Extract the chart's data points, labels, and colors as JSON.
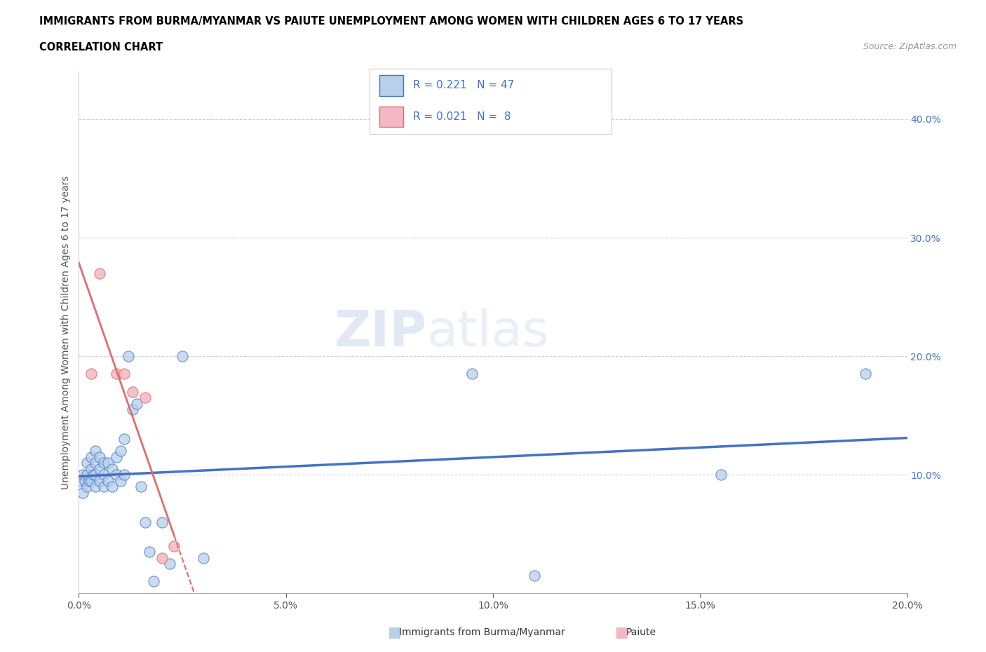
{
  "title_line1": "IMMIGRANTS FROM BURMA/MYANMAR VS PAIUTE UNEMPLOYMENT AMONG WOMEN WITH CHILDREN AGES 6 TO 17 YEARS",
  "title_line2": "CORRELATION CHART",
  "source_text": "Source: ZipAtlas.com",
  "ylabel": "Unemployment Among Women with Children Ages 6 to 17 years",
  "xlim": [
    0.0,
    0.2
  ],
  "ylim": [
    0.0,
    0.44
  ],
  "xticks": [
    0.0,
    0.05,
    0.1,
    0.15,
    0.2
  ],
  "yticks": [
    0.0,
    0.1,
    0.2,
    0.3,
    0.4
  ],
  "blue_scatter_x": [
    0.0005,
    0.001,
    0.001,
    0.0015,
    0.002,
    0.002,
    0.002,
    0.0025,
    0.003,
    0.003,
    0.003,
    0.0035,
    0.004,
    0.004,
    0.004,
    0.004,
    0.005,
    0.005,
    0.005,
    0.006,
    0.006,
    0.006,
    0.007,
    0.007,
    0.008,
    0.008,
    0.009,
    0.009,
    0.01,
    0.01,
    0.011,
    0.011,
    0.012,
    0.013,
    0.014,
    0.015,
    0.016,
    0.017,
    0.018,
    0.02,
    0.022,
    0.025,
    0.03,
    0.095,
    0.11,
    0.155,
    0.19
  ],
  "blue_scatter_y": [
    0.095,
    0.085,
    0.1,
    0.095,
    0.09,
    0.1,
    0.11,
    0.095,
    0.095,
    0.105,
    0.115,
    0.1,
    0.09,
    0.1,
    0.11,
    0.12,
    0.095,
    0.105,
    0.115,
    0.09,
    0.1,
    0.11,
    0.095,
    0.11,
    0.09,
    0.105,
    0.1,
    0.115,
    0.095,
    0.12,
    0.1,
    0.13,
    0.2,
    0.155,
    0.16,
    0.09,
    0.06,
    0.035,
    0.01,
    0.06,
    0.025,
    0.2,
    0.03,
    0.185,
    0.015,
    0.1,
    0.185
  ],
  "pink_scatter_x": [
    0.003,
    0.005,
    0.009,
    0.011,
    0.013,
    0.016,
    0.02,
    0.023
  ],
  "pink_scatter_y": [
    0.185,
    0.27,
    0.185,
    0.185,
    0.17,
    0.165,
    0.03,
    0.04
  ],
  "blue_R": 0.221,
  "blue_N": 47,
  "pink_R": 0.021,
  "pink_N": 8,
  "blue_line_color": "#4472c4",
  "pink_line_color": "#e36c6c",
  "blue_scatter_color": "#b8d0ea",
  "pink_scatter_color": "#f4b8c4",
  "watermark_zip": "ZIP",
  "watermark_atlas": "atlas",
  "legend_label_blue": "Immigrants from Burma/Myanmar",
  "legend_label_pink": "Paiute",
  "background_color": "#ffffff",
  "grid_color": "#d0d0d0",
  "title_color": "#000000",
  "stat_color": "#4472c4",
  "right_axis_tick_color": "#4472c4"
}
